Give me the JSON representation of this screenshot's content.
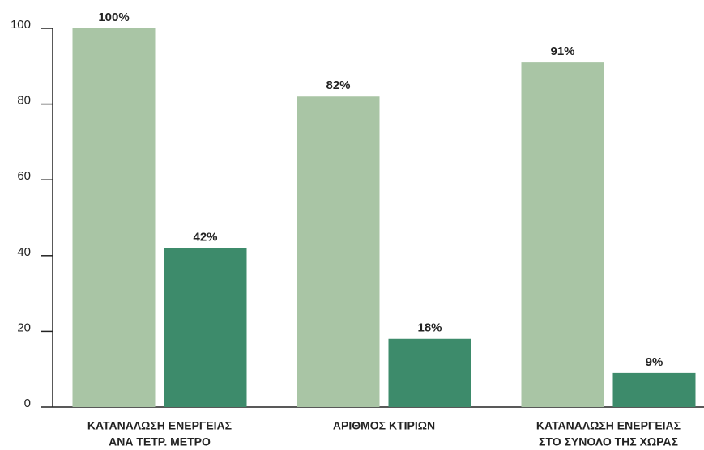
{
  "chart_data": {
    "type": "bar",
    "categories": [
      [
        "ΚΑΤΑΝΑΛΩΣΗ ΕΝΕΡΓΕΙΑΣ",
        "ΑΝΑ ΤΕΤΡ. ΜΕΤΡΟ"
      ],
      [
        "ΑΡΙΘΜΟΣ ΚΤΙΡΙΩΝ"
      ],
      [
        "ΚΑΤΑΝΑΛΩΣΗ ΕΝΕΡΓΕΙΑΣ",
        "ΣΤΟ ΣΥΝΟΛΟ ΤΗΣ ΧΩΡΑΣ"
      ]
    ],
    "series": [
      {
        "color": "#a9c5a5",
        "values": [
          100,
          82,
          91
        ],
        "value_labels": [
          "100%",
          "82%",
          "91%"
        ]
      },
      {
        "color": "#3d8b6b",
        "values": [
          42,
          18,
          9
        ],
        "value_labels": [
          "42%",
          "18%",
          "9%"
        ]
      }
    ],
    "ylim": [
      0,
      100
    ],
    "yticks": [
      0,
      20,
      40,
      60,
      80,
      100
    ]
  }
}
